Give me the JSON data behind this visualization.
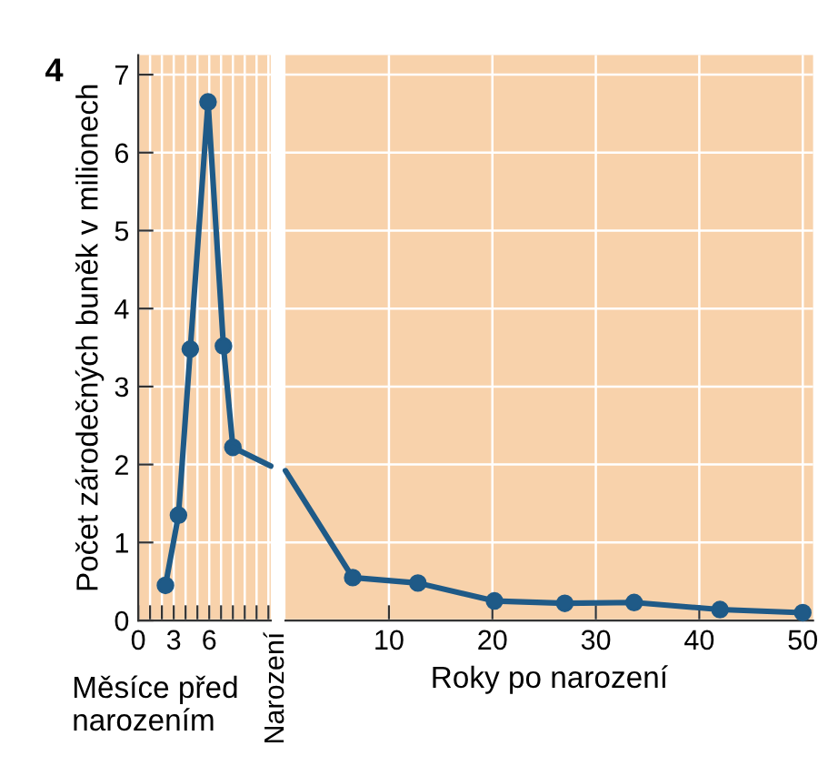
{
  "chart_data": [
    {
      "type": "line",
      "ylabel": "Počet zárodečných buněk v milionech",
      "xlabel": "Měsíce před\nnarozením",
      "annotations": [
        "4"
      ],
      "xlim": [
        0,
        11.2
      ],
      "ylim": [
        0,
        7.25
      ],
      "xticks": [
        0,
        {
          "value": 1,
          "label": null
        },
        {
          "value": 2,
          "label": null
        },
        3,
        {
          "value": 4,
          "label": null
        },
        {
          "value": 5,
          "label": null
        },
        6,
        {
          "value": 7,
          "label": null
        },
        {
          "value": 8,
          "label": null
        },
        {
          "value": 9,
          "label": null
        },
        {
          "value": 10,
          "label": null
        },
        {
          "value": 11,
          "label": null
        }
      ],
      "yticks": [
        0,
        1,
        2,
        3,
        4,
        5,
        6,
        7
      ],
      "grid": true,
      "series": [
        {
          "color": "#1f5a87",
          "marker": "circle",
          "x": [
            2.3,
            3.4,
            4.4,
            5.9,
            7.2,
            8.0
          ],
          "values": [
            0.45,
            1.35,
            3.48,
            6.65,
            3.52,
            2.22
          ]
        },
        {
          "color": "#1f5a87",
          "x": [
            8.0,
            11.2
          ],
          "values": [
            2.22,
            1.98
          ]
        }
      ]
    },
    {
      "type": "line",
      "xlabel": "Roky po narození",
      "annotations": [
        "Narození"
      ],
      "xlim": [
        0,
        51
      ],
      "ylim": [
        0,
        7.25
      ],
      "xticks": [
        10,
        20,
        30,
        40,
        50
      ],
      "tick_labels": "x",
      "grid": true,
      "series": [
        {
          "color": "#1f5a87",
          "x": [
            0,
            6.5
          ],
          "values": [
            1.92,
            0.55
          ]
        },
        {
          "color": "#1f5a87",
          "marker": "circle",
          "x": [
            6.5,
            12.8,
            20.2,
            27,
            33.7,
            42,
            50
          ],
          "values": [
            0.55,
            0.48,
            0.25,
            0.22,
            0.23,
            0.14,
            0.1
          ]
        }
      ]
    }
  ]
}
